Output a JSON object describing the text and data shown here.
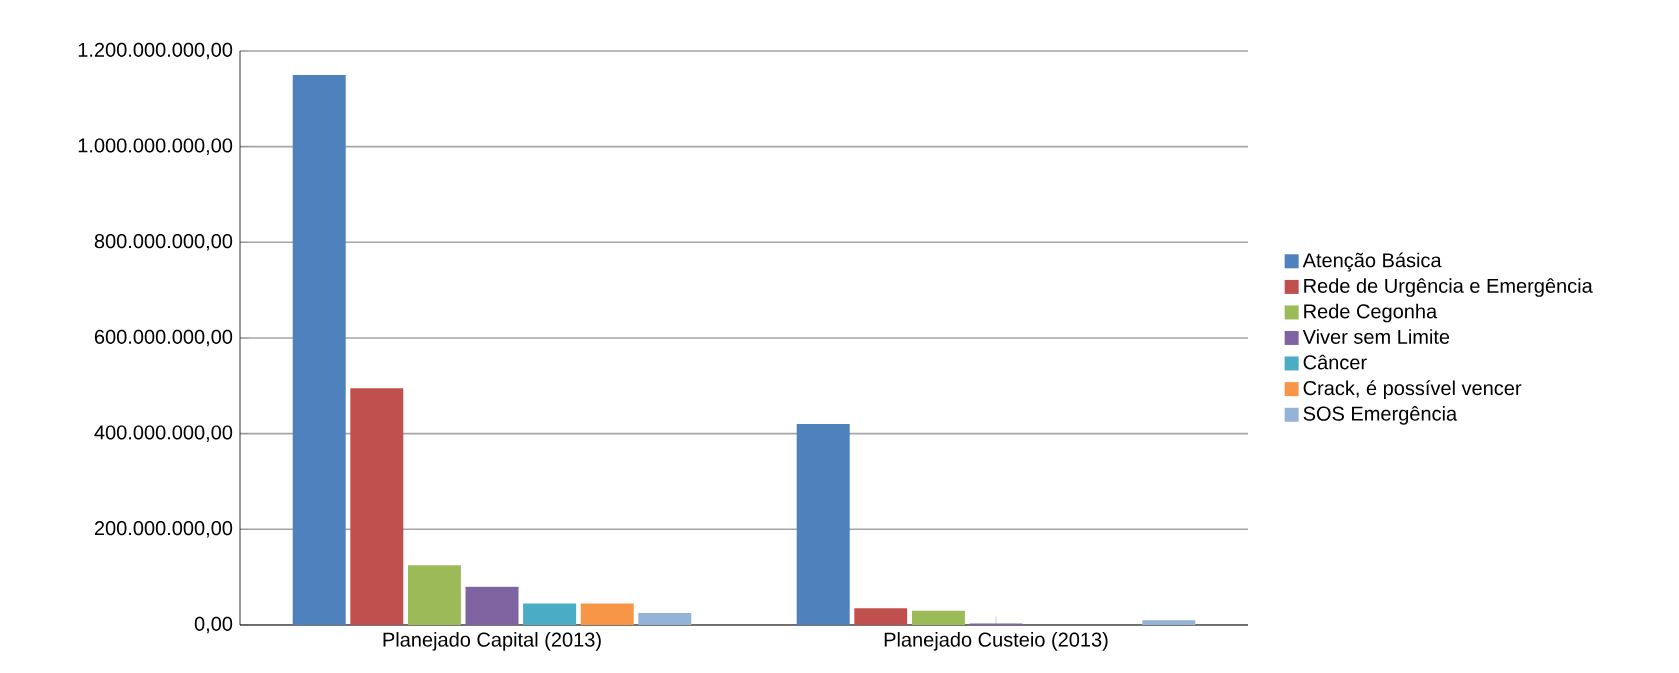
{
  "chart_data": {
    "type": "bar",
    "categories": [
      "Planejado Capital (2013)",
      "Planejado Custeio (2013)"
    ],
    "series": [
      {
        "name": "Atenção Básica",
        "color": "#4f81bd",
        "values": [
          1150000000,
          420000000
        ]
      },
      {
        "name": "Rede de Urgência e Emergência",
        "color": "#c0504d",
        "values": [
          495000000,
          35000000
        ]
      },
      {
        "name": "Rede Cegonha",
        "color": "#9bbb59",
        "values": [
          125000000,
          30000000
        ]
      },
      {
        "name": "Viver sem Limite",
        "color": "#8064a2",
        "values": [
          80000000,
          3000000
        ]
      },
      {
        "name": "Câncer",
        "color": "#4bacc6",
        "values": [
          45000000,
          0
        ]
      },
      {
        "name": "Crack, é possível vencer",
        "color": "#f79646",
        "values": [
          45000000,
          0
        ]
      },
      {
        "name": "SOS Emergência",
        "color": "#95b3d7",
        "values": [
          25000000,
          10000000
        ]
      }
    ],
    "ylim": [
      0,
      1200000000
    ],
    "yticks": [
      {
        "value": 0,
        "label": "0,00"
      },
      {
        "value": 200000000,
        "label": "200.000.000,00"
      },
      {
        "value": 400000000,
        "label": "400.000.000,00"
      },
      {
        "value": 600000000,
        "label": "600.000.000,00"
      },
      {
        "value": 800000000,
        "label": "800.000.000,00"
      },
      {
        "value": 1000000000,
        "label": "1.000.000.000,00"
      },
      {
        "value": 1200000000,
        "label": "1.200.000.000,00"
      }
    ],
    "grid": "y",
    "legend": "right"
  }
}
